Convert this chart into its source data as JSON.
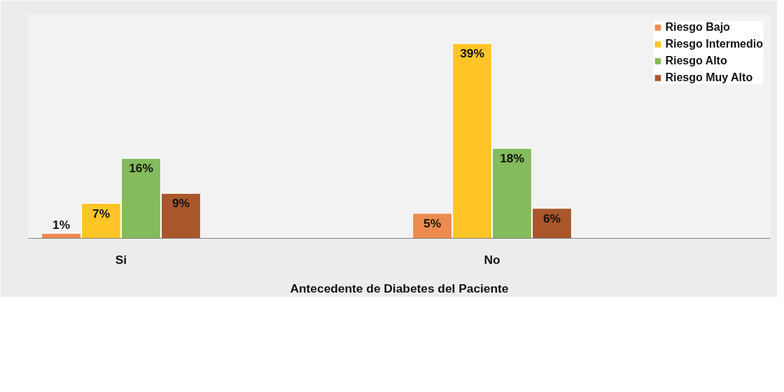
{
  "chart_data": {
    "type": "bar",
    "categories": [
      "Si",
      null,
      "No",
      null
    ],
    "xlabel": "Antecedente de Diabetes del Paciente",
    "series": [
      {
        "name": "Riesgo Bajo",
        "color": "#ed8b4f",
        "values": [
          1,
          null,
          5,
          null
        ],
        "value_labels": [
          "1%",
          null,
          "5%",
          null
        ]
      },
      {
        "name": "Riesgo Intermedio",
        "color": "#ffc526",
        "values": [
          7,
          null,
          39,
          null
        ],
        "value_labels": [
          "7%",
          null,
          "39%",
          null
        ]
      },
      {
        "name": "Riesgo Alto",
        "color": "#84bb5c",
        "values": [
          16,
          null,
          18,
          null
        ],
        "value_labels": [
          "16%",
          null,
          "18%",
          null
        ]
      },
      {
        "name": "Riesgo Muy Alto",
        "color": "#a9562b",
        "values": [
          9,
          null,
          6,
          null
        ],
        "value_labels": [
          "9%",
          null,
          "6%",
          null
        ]
      }
    ],
    "legend": "top right"
  }
}
